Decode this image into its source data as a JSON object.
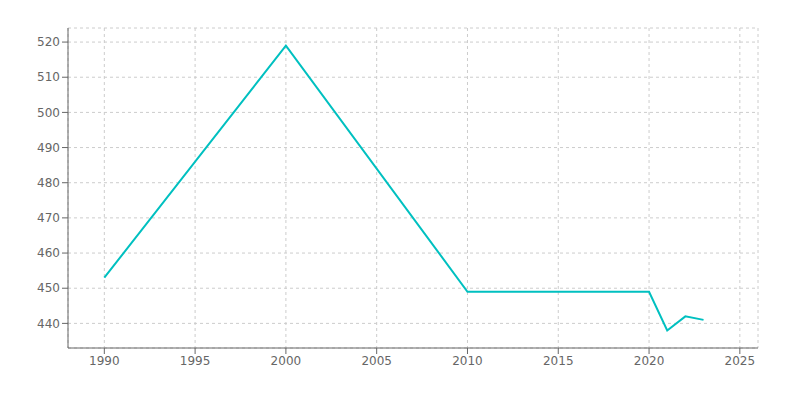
{
  "chart_data": {
    "type": "line",
    "x": [
      1990,
      2000,
      2010,
      2020,
      2021,
      2022,
      2023
    ],
    "values": [
      453,
      519,
      449,
      449,
      438,
      442,
      441
    ],
    "color": "#00C0C0",
    "xlim": [
      1988,
      2026
    ],
    "xticks": [
      1990,
      1995,
      2000,
      2005,
      2010,
      2015,
      2020,
      2025
    ],
    "ylim": [
      433,
      524
    ],
    "yticks": [
      440,
      450,
      460,
      470,
      480,
      490,
      500,
      510,
      520
    ],
    "grid": true
  }
}
